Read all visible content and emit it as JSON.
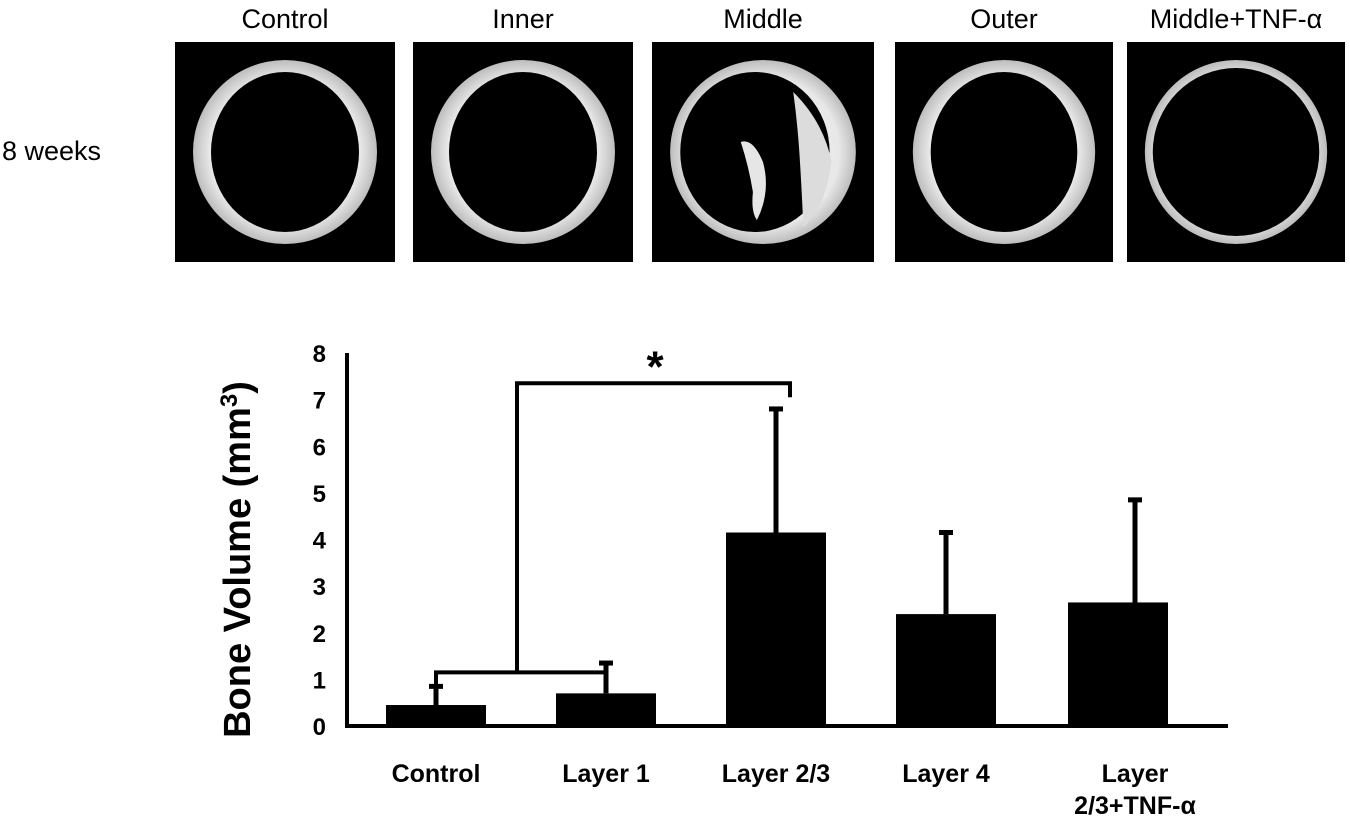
{
  "figure": {
    "row_label": "8 weeks",
    "panels": [
      {
        "label": "Control"
      },
      {
        "label": "Inner"
      },
      {
        "label": "Middle"
      },
      {
        "label": "Outer"
      },
      {
        "label": "Middle+TNF-α"
      }
    ]
  },
  "chart_data": {
    "type": "bar",
    "categories": [
      "Control",
      "Layer 1",
      "Layer 2/3",
      "Layer 4",
      "Layer 2/3+TNF-α"
    ],
    "category_lines": [
      [
        "Control"
      ],
      [
        "Layer 1"
      ],
      [
        "Layer 2/3"
      ],
      [
        "Layer 4"
      ],
      [
        "Layer",
        "2/3+TNF-α"
      ]
    ],
    "values": [
      0.45,
      0.7,
      4.15,
      2.4,
      2.65
    ],
    "errors": [
      0.4,
      0.65,
      2.65,
      1.75,
      2.2
    ],
    "ylabel": "Bone Volume (mm",
    "ylabel_superscript": "3",
    "ylabel_suffix": ")",
    "ylim": [
      0,
      8
    ],
    "yticks": [
      "0",
      "1",
      "2",
      "3",
      "4",
      "5",
      "6",
      "7",
      "8"
    ],
    "bar_color": "#000000",
    "grid": false,
    "annotations": [
      {
        "text": "*",
        "from": [
          "Control",
          "Layer 1"
        ],
        "to": "Layer 2/3"
      }
    ]
  }
}
